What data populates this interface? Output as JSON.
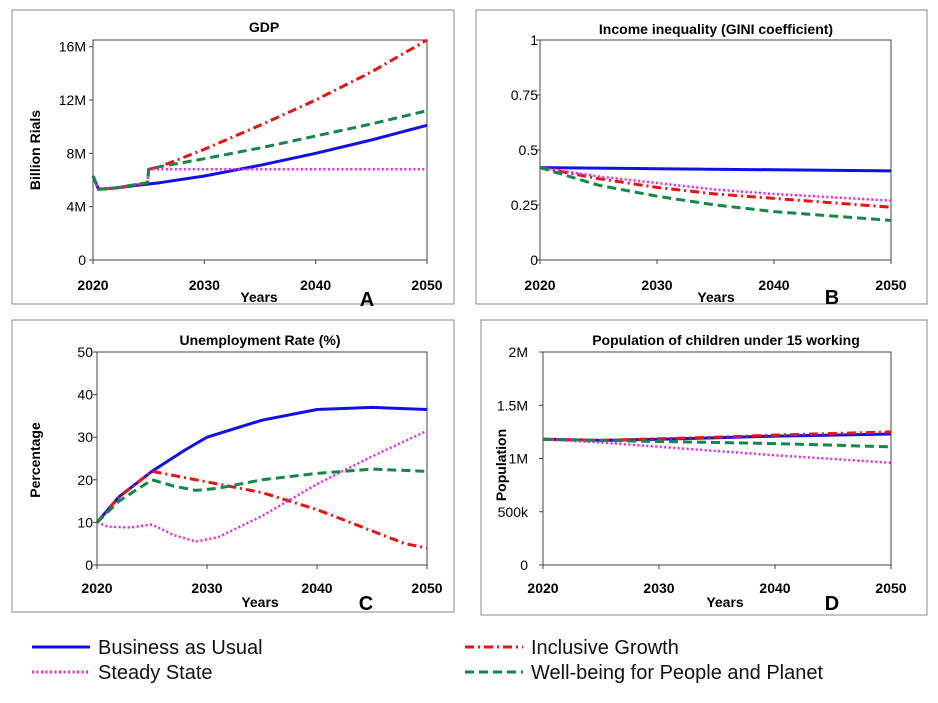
{
  "chart_data": [
    {
      "type": "line",
      "title": "GDP",
      "xlabel": "Years",
      "ylabel": "Billion Rials",
      "panel_letter": "A",
      "xlim": [
        2020,
        2050
      ],
      "ylim": [
        0,
        16.5
      ],
      "x_ticks": [
        2020,
        2030,
        2040,
        2050
      ],
      "y_ticks": [
        0,
        4,
        8,
        12,
        16
      ],
      "y_tick_labels": [
        "0",
        "4M",
        "8M",
        "12M",
        "16M"
      ],
      "grid": false,
      "series": [
        {
          "key": "bau",
          "x": [
            2020,
            2020.5,
            2022,
            2024,
            2026,
            2030,
            2035,
            2040,
            2045,
            2050
          ],
          "y": [
            6.3,
            5.3,
            5.4,
            5.6,
            5.8,
            6.3,
            7.1,
            8.0,
            9.0,
            10.1
          ]
        },
        {
          "key": "ig",
          "x": [
            2020,
            2020.5,
            2022,
            2024.9,
            2025,
            2026,
            2030,
            2035,
            2040,
            2045,
            2050
          ],
          "y": [
            6.3,
            5.3,
            5.4,
            5.8,
            6.8,
            7.0,
            8.3,
            10.1,
            12.0,
            14.1,
            16.5
          ]
        },
        {
          "key": "ss",
          "x": [
            2020,
            2020.5,
            2022,
            2024.9,
            2025,
            2030,
            2040,
            2050
          ],
          "y": [
            6.3,
            5.3,
            5.4,
            5.8,
            6.8,
            6.8,
            6.8,
            6.8
          ]
        },
        {
          "key": "wb",
          "x": [
            2020,
            2020.5,
            2022,
            2024.9,
            2025,
            2026,
            2030,
            2035,
            2040,
            2045,
            2050
          ],
          "y": [
            6.3,
            5.3,
            5.4,
            5.8,
            6.8,
            7.0,
            7.6,
            8.4,
            9.3,
            10.2,
            11.2
          ]
        }
      ]
    },
    {
      "type": "line",
      "title": "Income inequality (GINI coefficient)",
      "xlabel": "Years",
      "ylabel": "",
      "panel_letter": "B",
      "xlim": [
        2020,
        2050
      ],
      "ylim": [
        0,
        1.0
      ],
      "x_ticks": [
        2020,
        2030,
        2040,
        2050
      ],
      "y_ticks": [
        0,
        0.25,
        0.5,
        0.75,
        1
      ],
      "y_tick_labels": [
        "0",
        "0.25",
        "0.5",
        "0.75",
        "1"
      ],
      "grid": false,
      "series": [
        {
          "key": "bau",
          "x": [
            2020,
            2030,
            2040,
            2050
          ],
          "y": [
            0.42,
            0.415,
            0.41,
            0.405
          ]
        },
        {
          "key": "ig",
          "x": [
            2020,
            2025,
            2030,
            2035,
            2040,
            2045,
            2050
          ],
          "y": [
            0.42,
            0.37,
            0.33,
            0.3,
            0.28,
            0.26,
            0.24
          ]
        },
        {
          "key": "ss",
          "x": [
            2020,
            2025,
            2030,
            2035,
            2040,
            2045,
            2050
          ],
          "y": [
            0.42,
            0.38,
            0.35,
            0.32,
            0.3,
            0.285,
            0.27
          ]
        },
        {
          "key": "wb",
          "x": [
            2020,
            2025,
            2030,
            2035,
            2040,
            2045,
            2050
          ],
          "y": [
            0.42,
            0.34,
            0.29,
            0.25,
            0.22,
            0.2,
            0.18
          ]
        }
      ]
    },
    {
      "type": "line",
      "title": "Unemployment Rate (%)",
      "xlabel": "Years",
      "ylabel": "Percentage",
      "panel_letter": "C",
      "xlim": [
        2020,
        2050
      ],
      "ylim": [
        0,
        50
      ],
      "x_ticks": [
        2020,
        2030,
        2040,
        2050
      ],
      "y_ticks": [
        0,
        10,
        20,
        30,
        40,
        50
      ],
      "y_tick_labels": [
        "0",
        "10",
        "20",
        "30",
        "40",
        "50"
      ],
      "grid": false,
      "series": [
        {
          "key": "bau",
          "x": [
            2020,
            2022,
            2025,
            2028,
            2030,
            2035,
            2040,
            2045,
            2050
          ],
          "y": [
            10,
            16,
            22,
            27,
            30,
            34,
            36.5,
            37,
            36.5
          ]
        },
        {
          "key": "ig",
          "x": [
            2020,
            2022,
            2025,
            2028,
            2030,
            2035,
            2040,
            2045,
            2048,
            2050
          ],
          "y": [
            10,
            16,
            22,
            20.5,
            19.5,
            17,
            13,
            8,
            5,
            4
          ]
        },
        {
          "key": "ss",
          "x": [
            2020,
            2021,
            2023,
            2025,
            2027,
            2029,
            2031,
            2035,
            2040,
            2045,
            2050
          ],
          "y": [
            10,
            9,
            8.8,
            9.5,
            7,
            5.5,
            6.5,
            11.5,
            19,
            25.5,
            31.5
          ]
        },
        {
          "key": "wb",
          "x": [
            2020,
            2022,
            2025,
            2027,
            2029,
            2031,
            2035,
            2040,
            2045,
            2050
          ],
          "y": [
            10,
            15,
            20,
            18.5,
            17.5,
            18,
            20,
            21.5,
            22.5,
            22
          ]
        }
      ]
    },
    {
      "type": "line",
      "title": "Population of children under 15 working",
      "xlabel": "Years",
      "ylabel": "Population",
      "panel_letter": "D",
      "xlim": [
        2020,
        2050
      ],
      "ylim": [
        0,
        2000000
      ],
      "x_ticks": [
        2020,
        2030,
        2040,
        2050
      ],
      "y_ticks": [
        0,
        500000,
        1000000,
        1500000,
        2000000
      ],
      "y_tick_labels": [
        "0",
        "500k",
        "1M",
        "1.5M",
        "2M"
      ],
      "grid": false,
      "series": [
        {
          "key": "bau",
          "x": [
            2020,
            2025,
            2030,
            2035,
            2040,
            2045,
            2050
          ],
          "y": [
            1180000,
            1170000,
            1180000,
            1195000,
            1210000,
            1220000,
            1230000
          ]
        },
        {
          "key": "ig",
          "x": [
            2020,
            2025,
            2030,
            2035,
            2040,
            2045,
            2050
          ],
          "y": [
            1180000,
            1170000,
            1185000,
            1200000,
            1220000,
            1235000,
            1250000
          ]
        },
        {
          "key": "ss",
          "x": [
            2020,
            2025,
            2030,
            2035,
            2040,
            2045,
            2050
          ],
          "y": [
            1180000,
            1150000,
            1110000,
            1070000,
            1030000,
            995000,
            960000
          ]
        },
        {
          "key": "wb",
          "x": [
            2020,
            2025,
            2030,
            2035,
            2040,
            2045,
            2050
          ],
          "y": [
            1180000,
            1170000,
            1160000,
            1150000,
            1140000,
            1125000,
            1110000
          ]
        }
      ]
    }
  ],
  "legend": [
    {
      "key": "bau",
      "label": "Business as Usual",
      "color": "#1010ee",
      "dash": "solid"
    },
    {
      "key": "ig",
      "label": "Inclusive Growth",
      "color": "#ee1111",
      "dash": "dashdot"
    },
    {
      "key": "ss",
      "label": "Steady State",
      "color": "#ee22ee",
      "dash": "dotted"
    },
    {
      "key": "wb",
      "label": "Well-being for People and Planet",
      "color": "#118844",
      "dash": "dashed"
    }
  ]
}
